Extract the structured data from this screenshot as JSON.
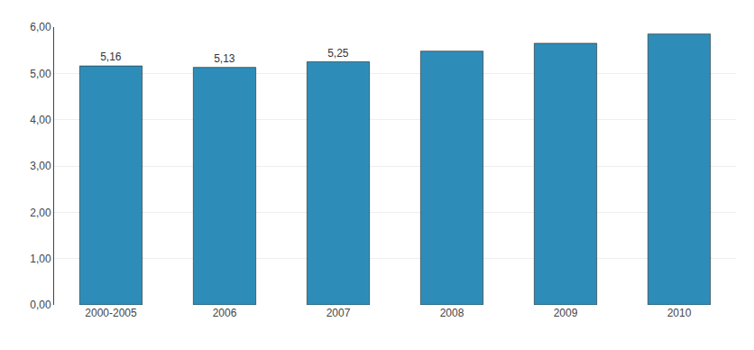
{
  "chart_data": {
    "type": "bar",
    "categories": [
      "2000-2005",
      "2006",
      "2007",
      "2008",
      "2009",
      "2010"
    ],
    "values": [
      5.16,
      5.13,
      5.25,
      5.48,
      5.65,
      5.85
    ],
    "data_labels": true,
    "value_labels": [
      "5,16",
      "5,13",
      "5,25",
      null,
      null,
      null
    ],
    "color": "#2e8db8",
    "ylim": [
      0,
      6.0
    ],
    "yticks": [
      {
        "value": 0.0,
        "label": "0,00"
      },
      {
        "value": 1.0,
        "label": "1,00"
      },
      {
        "value": 2.0,
        "label": "2,00"
      },
      {
        "value": 3.0,
        "label": "3,00"
      },
      {
        "value": 4.0,
        "label": "4,00"
      },
      {
        "value": 5.0,
        "label": "5,00"
      },
      {
        "value": 6.0,
        "label": "6,00"
      }
    ],
    "grid": true
  }
}
